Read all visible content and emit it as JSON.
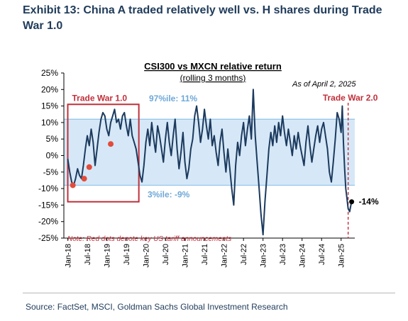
{
  "exhibit": {
    "title": "Exhibit 13: China A traded relatively well vs. H shares during Trade War 1.0",
    "source": "Source: FactSet, MSCI, Goldman Sachs Global Investment Research"
  },
  "chart_data": {
    "type": "line",
    "title": "CSI300 vs MXCN relative return",
    "subtitle": "(rolling 3 months)",
    "as_of": "As of April 2, 2025",
    "xlabel": "",
    "ylabel": "",
    "ylim": [
      -25,
      25
    ],
    "yticks": [
      -25,
      -20,
      -15,
      -10,
      -5,
      0,
      5,
      10,
      15,
      20,
      25
    ],
    "ytick_labels": [
      "-25%",
      "-20%",
      "-15%",
      "-10%",
      "-5%",
      "0%",
      "5%",
      "10%",
      "15%",
      "20%",
      "25%"
    ],
    "xticks": [
      {
        "x": 2018.0,
        "label": "Jan-18"
      },
      {
        "x": 2018.5,
        "label": "Jul-18"
      },
      {
        "x": 2019.0,
        "label": "Jan-19"
      },
      {
        "x": 2019.5,
        "label": "Jul-19"
      },
      {
        "x": 2020.0,
        "label": "Jan-20"
      },
      {
        "x": 2020.5,
        "label": "Jul-20"
      },
      {
        "x": 2021.0,
        "label": "Jan-21"
      },
      {
        "x": 2021.5,
        "label": "Jul-21"
      },
      {
        "x": 2022.0,
        "label": "Jan-22"
      },
      {
        "x": 2022.5,
        "label": "Jul-22"
      },
      {
        "x": 2023.0,
        "label": "Jan-23"
      },
      {
        "x": 2023.5,
        "label": "Jul-23"
      },
      {
        "x": 2024.0,
        "label": "Jan-24"
      },
      {
        "x": 2024.5,
        "label": "Jul-24"
      },
      {
        "x": 2025.0,
        "label": "Jan-25"
      }
    ],
    "xlim": [
      2017.9,
      2025.35
    ],
    "grid": false,
    "band": {
      "low": -9,
      "high": 11,
      "color": "#d6e8f7",
      "border": "#8cc3ea",
      "high_label": "97%ile: 11%",
      "low_label": "3%ile: -9%"
    },
    "series": [
      {
        "color": "#1c3a5e",
        "points": [
          [
            2018.0,
            -1
          ],
          [
            2018.05,
            -5
          ],
          [
            2018.1,
            -8
          ],
          [
            2018.15,
            -9
          ],
          [
            2018.2,
            -7
          ],
          [
            2018.25,
            -4
          ],
          [
            2018.3,
            -6
          ],
          [
            2018.35,
            -7
          ],
          [
            2018.4,
            -3
          ],
          [
            2018.45,
            2
          ],
          [
            2018.5,
            6
          ],
          [
            2018.55,
            3
          ],
          [
            2018.6,
            8
          ],
          [
            2018.65,
            4
          ],
          [
            2018.7,
            -3
          ],
          [
            2018.75,
            2
          ],
          [
            2018.8,
            7
          ],
          [
            2018.85,
            11
          ],
          [
            2018.9,
            13
          ],
          [
            2018.95,
            12
          ],
          [
            2019.0,
            8
          ],
          [
            2019.05,
            6
          ],
          [
            2019.1,
            10
          ],
          [
            2019.15,
            12
          ],
          [
            2019.2,
            14
          ],
          [
            2019.25,
            10
          ],
          [
            2019.3,
            11
          ],
          [
            2019.35,
            8
          ],
          [
            2019.4,
            12
          ],
          [
            2019.45,
            13
          ],
          [
            2019.5,
            9
          ],
          [
            2019.55,
            6
          ],
          [
            2019.6,
            11
          ],
          [
            2019.65,
            6
          ],
          [
            2019.7,
            4
          ],
          [
            2019.75,
            2
          ],
          [
            2019.8,
            -2
          ],
          [
            2019.85,
            -6
          ],
          [
            2019.9,
            -8
          ],
          [
            2019.95,
            -3
          ],
          [
            2020.0,
            4
          ],
          [
            2020.05,
            8
          ],
          [
            2020.1,
            3
          ],
          [
            2020.15,
            10
          ],
          [
            2020.2,
            5
          ],
          [
            2020.25,
            1
          ],
          [
            2020.3,
            9
          ],
          [
            2020.35,
            6
          ],
          [
            2020.4,
            2
          ],
          [
            2020.45,
            -2
          ],
          [
            2020.5,
            5
          ],
          [
            2020.55,
            10
          ],
          [
            2020.6,
            4
          ],
          [
            2020.65,
            0
          ],
          [
            2020.7,
            6
          ],
          [
            2020.75,
            11
          ],
          [
            2020.8,
            2
          ],
          [
            2020.85,
            -4
          ],
          [
            2020.9,
            1
          ],
          [
            2020.95,
            7
          ],
          [
            2021.0,
            -2
          ],
          [
            2021.05,
            -7
          ],
          [
            2021.1,
            -4
          ],
          [
            2021.15,
            2
          ],
          [
            2021.2,
            5
          ],
          [
            2021.25,
            12
          ],
          [
            2021.3,
            15
          ],
          [
            2021.35,
            10
          ],
          [
            2021.4,
            4
          ],
          [
            2021.45,
            8
          ],
          [
            2021.5,
            14
          ],
          [
            2021.55,
            9
          ],
          [
            2021.6,
            5
          ],
          [
            2021.65,
            11
          ],
          [
            2021.7,
            3
          ],
          [
            2021.75,
            6
          ],
          [
            2021.8,
            1
          ],
          [
            2021.85,
            -3
          ],
          [
            2021.9,
            4
          ],
          [
            2021.95,
            8
          ],
          [
            2022.0,
            1
          ],
          [
            2022.05,
            -5
          ],
          [
            2022.1,
            2
          ],
          [
            2022.15,
            -4
          ],
          [
            2022.2,
            -10
          ],
          [
            2022.25,
            -15
          ],
          [
            2022.3,
            -3
          ],
          [
            2022.35,
            4
          ],
          [
            2022.4,
            0
          ],
          [
            2022.45,
            6
          ],
          [
            2022.5,
            10
          ],
          [
            2022.55,
            3
          ],
          [
            2022.6,
            8
          ],
          [
            2022.65,
            12
          ],
          [
            2022.7,
            5
          ],
          [
            2022.75,
            20
          ],
          [
            2022.8,
            6
          ],
          [
            2022.85,
            -2
          ],
          [
            2022.9,
            -10
          ],
          [
            2022.95,
            -18
          ],
          [
            2023.0,
            -24
          ],
          [
            2023.05,
            -14
          ],
          [
            2023.1,
            -6
          ],
          [
            2023.15,
            2
          ],
          [
            2023.2,
            7
          ],
          [
            2023.25,
            3
          ],
          [
            2023.3,
            9
          ],
          [
            2023.35,
            4
          ],
          [
            2023.4,
            10
          ],
          [
            2023.45,
            6
          ],
          [
            2023.5,
            12
          ],
          [
            2023.55,
            7
          ],
          [
            2023.6,
            3
          ],
          [
            2023.65,
            8
          ],
          [
            2023.7,
            4
          ],
          [
            2023.75,
            0
          ],
          [
            2023.8,
            6
          ],
          [
            2023.85,
            2
          ],
          [
            2023.9,
            7
          ],
          [
            2023.95,
            3
          ],
          [
            2024.0,
            0
          ],
          [
            2024.05,
            -3
          ],
          [
            2024.1,
            4
          ],
          [
            2024.15,
            9
          ],
          [
            2024.2,
            3
          ],
          [
            2024.25,
            -2
          ],
          [
            2024.3,
            2
          ],
          [
            2024.35,
            6
          ],
          [
            2024.4,
            9
          ],
          [
            2024.45,
            4
          ],
          [
            2024.5,
            8
          ],
          [
            2024.55,
            10
          ],
          [
            2024.6,
            6
          ],
          [
            2024.65,
            2
          ],
          [
            2024.7,
            -5
          ],
          [
            2024.75,
            -8
          ],
          [
            2024.8,
            -2
          ],
          [
            2024.85,
            5
          ],
          [
            2024.9,
            13
          ],
          [
            2024.95,
            11
          ],
          [
            2025.0,
            7
          ],
          [
            2025.03,
            15
          ],
          [
            2025.06,
            4
          ],
          [
            2025.09,
            -4
          ],
          [
            2025.12,
            -10
          ],
          [
            2025.15,
            -13
          ],
          [
            2025.18,
            -16
          ],
          [
            2025.22,
            -17
          ],
          [
            2025.25,
            -15
          ],
          [
            2025.27,
            -14
          ]
        ]
      }
    ],
    "red_dots": [
      {
        "x": 2018.13,
        "y": -9
      },
      {
        "x": 2018.42,
        "y": -7
      },
      {
        "x": 2018.55,
        "y": -3.5
      },
      {
        "x": 2019.1,
        "y": 3.5
      }
    ],
    "trade_war_1": {
      "label": "Trade War 1.0",
      "x0": 2018.0,
      "x1": 2019.82,
      "y0": -14,
      "y1": 15.5
    },
    "trade_war_2": {
      "label": "Trade War 2.0",
      "x": 2025.18
    },
    "end_marker": {
      "x": 2025.27,
      "y": -14,
      "label": "-14%"
    },
    "note": "Note: Red dots denote key US tariff announcements"
  }
}
